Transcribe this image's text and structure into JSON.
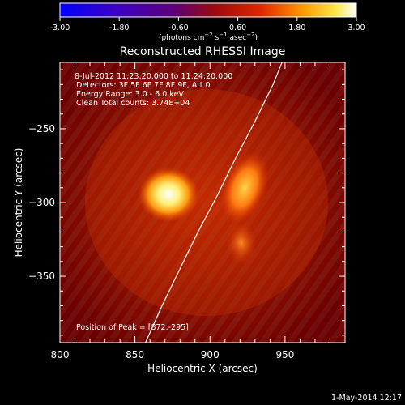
{
  "colorbar": {
    "ticks": [
      "-3.00",
      "-1.80",
      "-0.60",
      "0.60",
      "1.80",
      "3.00"
    ],
    "tick_values": [
      -3.0,
      -1.8,
      -0.6,
      0.6,
      1.8,
      3.0
    ],
    "range": [
      -3.0,
      3.0
    ],
    "colormap": "RHESSI bluered: blue-purple-red-orange-yellow-white",
    "units_prefix": "(photons cm",
    "units_exp1": "−2",
    "units_mid": " s",
    "units_exp2": "−1",
    "units_mid2": " asec",
    "units_exp3": "−2",
    "units_suffix": ")"
  },
  "image": {
    "title": "Reconstructed RHESSI Image",
    "annotations": [
      " 8-Jul-2012 11:23:20.000 to 11:24:20.000",
      "Detectors: 3F 5F 6F 7F 8F 9F, Att 0",
      "Energy Range: 3.0 - 6.0 keV",
      "Clean    Total counts: 3.74E+04"
    ],
    "peak_text": "Position of Peak = [872,-295]",
    "footer_date": "1-May-2014 12:17"
  },
  "chart_data": {
    "type": "heatmap",
    "title": "Reconstructed RHESSI Image",
    "xlabel": "Heliocentric X (arcsec)",
    "ylabel": "Heliocentric Y (arcsec)",
    "xlim": [
      800,
      990
    ],
    "ylim": [
      -395,
      -205
    ],
    "xticks": [
      800,
      850,
      900,
      950
    ],
    "xtick_labels": [
      "800",
      "850",
      "900",
      "950"
    ],
    "yticks": [
      -250,
      -300,
      -350
    ],
    "ytick_labels": [
      "−250",
      "−300",
      "−350"
    ],
    "sources": [
      {
        "x": 872,
        "y": -295,
        "peak": true
      },
      {
        "x": 925,
        "y": -293
      },
      {
        "x": 925,
        "y": -330
      }
    ],
    "limb_curve": [
      [
        857,
        -395
      ],
      [
        868,
        -370
      ],
      [
        880,
        -345
      ],
      [
        892,
        -320
      ],
      [
        905,
        -295
      ],
      [
        917,
        -270
      ],
      [
        930,
        -245
      ],
      [
        942,
        -220
      ],
      [
        948,
        -205
      ]
    ],
    "peak_position": [
      872,
      -295
    ]
  }
}
